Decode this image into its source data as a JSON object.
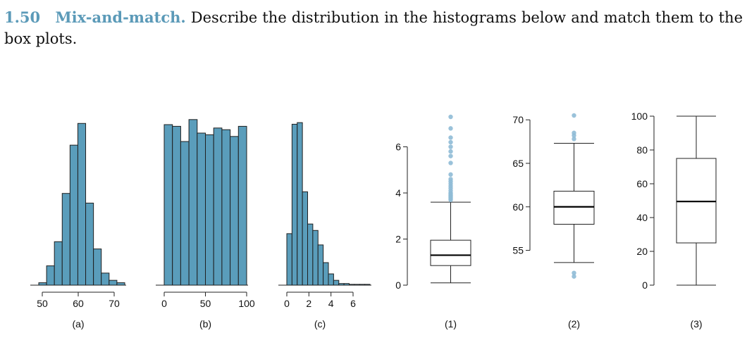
{
  "problem": {
    "number": "1.50",
    "title": "Mix-and-match.",
    "text": "Describe the distribution in the histograms below and match them to the box plots."
  },
  "colors": {
    "bar_fill": "#5a9dbb",
    "bar_stroke": "#1f1f1f",
    "outlier": "#8fbbd6",
    "axis": "#222222"
  },
  "chart_data": [
    {
      "type": "bar",
      "label": "(a)",
      "bin_edges": [
        50,
        52,
        54,
        56,
        58,
        60,
        62,
        64,
        66,
        68,
        70,
        72
      ],
      "values": [
        1,
        8,
        18,
        38,
        58,
        67,
        34,
        15,
        5,
        2,
        1
      ],
      "ylim": [
        0,
        70
      ],
      "xticks": [
        "50",
        "60",
        "70"
      ],
      "xlim": [
        50,
        70
      ]
    },
    {
      "type": "bar",
      "label": "(b)",
      "bin_edges": [
        0,
        10,
        20,
        30,
        40,
        50,
        60,
        70,
        80,
        90,
        100
      ],
      "values": [
        95,
        94,
        85,
        98,
        90,
        89,
        93,
        92,
        88,
        94
      ],
      "ylim": [
        0,
        100
      ],
      "xticks": [
        "0",
        "50",
        "100"
      ],
      "xlim": [
        0,
        100
      ]
    },
    {
      "type": "bar",
      "label": "(c)",
      "bin_edges": [
        0,
        0.5,
        1,
        1.5,
        2,
        2.5,
        3,
        3.5,
        4,
        4.5,
        5,
        5.5,
        6,
        6.5,
        7,
        7.5,
        8
      ],
      "values": [
        32,
        100,
        101,
        58,
        38,
        34,
        25,
        14,
        7,
        3,
        1,
        1,
        0.5,
        0.5,
        0.5,
        0.5
      ],
      "ylim": [
        0,
        105
      ],
      "xticks": [
        "0",
        "2",
        "4",
        "6"
      ],
      "xlim": [
        0,
        6
      ]
    },
    {
      "type": "box",
      "label": "(1)",
      "ylim": [
        0,
        7.3
      ],
      "yticks": [
        "0",
        "2",
        "4",
        "6"
      ],
      "min": 0.1,
      "q1": 0.85,
      "median": 1.3,
      "q3": 1.95,
      "max": 3.6,
      "outliers": [
        3.7,
        3.75,
        3.8,
        3.85,
        3.9,
        3.95,
        4.0,
        4.1,
        4.2,
        4.3,
        4.4,
        4.5,
        4.6,
        4.8,
        5.3,
        5.6,
        5.8,
        6.0,
        6.2,
        6.4,
        6.8,
        7.3
      ]
    },
    {
      "type": "box",
      "label": "(2)",
      "ylim": [
        51,
        70.5
      ],
      "yticks": [
        "55",
        "60",
        "65",
        "70"
      ],
      "min": 53.6,
      "q1": 58,
      "median": 60,
      "q3": 61.8,
      "max": 67.3,
      "outliers": [
        52.0,
        52.4,
        67.8,
        68.2,
        68.5,
        70.5
      ]
    },
    {
      "type": "box",
      "label": "(3)",
      "ylim": [
        0,
        100
      ],
      "yticks": [
        "0",
        "20",
        "40",
        "60",
        "80",
        "100"
      ],
      "min": 0,
      "q1": 25,
      "median": 49.5,
      "q3": 75,
      "max": 100,
      "outliers": []
    }
  ]
}
